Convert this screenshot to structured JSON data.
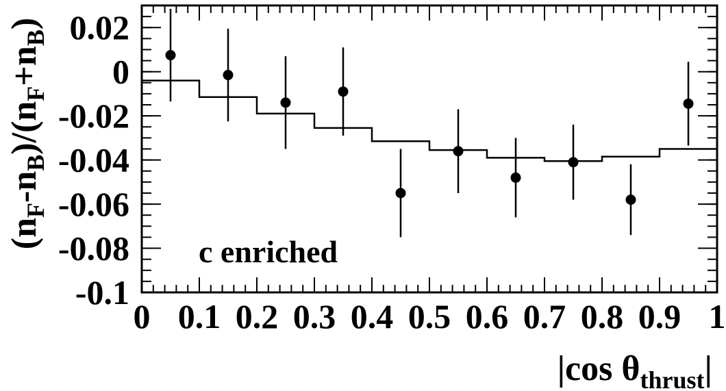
{
  "chart_data": {
    "type": "scatter",
    "title": "",
    "xlabel": "|cos θthrust|",
    "ylabel": "(nF-nB)/(nF+nB)",
    "xlim": [
      0,
      1
    ],
    "ylim": [
      -0.1,
      0.03
    ],
    "x_ticks": [
      0,
      0.1,
      0.2,
      0.3,
      0.4,
      0.5,
      0.6,
      0.7,
      0.8,
      0.9,
      1
    ],
    "x_tick_labels": [
      "0",
      "0.1",
      "0.2",
      "0.3",
      "0.4",
      "0.5",
      "0.6",
      "0.7",
      "0.8",
      "0.9",
      "1"
    ],
    "y_ticks": [
      -0.1,
      -0.08,
      -0.06,
      -0.04,
      -0.02,
      0,
      0.02
    ],
    "y_tick_labels": [
      "-0.1",
      "-0.08",
      "-0.06",
      "-0.04",
      "-0.02",
      "0",
      "0.02"
    ],
    "annotation": "c enriched",
    "grid": false,
    "legend": "none",
    "series": [
      {
        "kind": "points-with-errors",
        "x": [
          0.05,
          0.15,
          0.25,
          0.35,
          0.45,
          0.55,
          0.65,
          0.75,
          0.85,
          0.95
        ],
        "y": [
          0.0075,
          -0.0015,
          -0.014,
          -0.009,
          -0.055,
          -0.036,
          -0.048,
          -0.041,
          -0.058,
          -0.0145
        ],
        "yerr": [
          0.021,
          0.021,
          0.021,
          0.02,
          0.02,
          0.019,
          0.018,
          0.017,
          0.016,
          0.019
        ]
      },
      {
        "kind": "step-histogram",
        "bin_edges": [
          0,
          0.1,
          0.2,
          0.3,
          0.4,
          0.5,
          0.6,
          0.7,
          0.8,
          0.9,
          1
        ],
        "values": [
          -0.004,
          -0.0115,
          -0.019,
          -0.0255,
          -0.0315,
          -0.0355,
          -0.039,
          -0.0405,
          -0.0385,
          -0.035
        ]
      }
    ]
  }
}
